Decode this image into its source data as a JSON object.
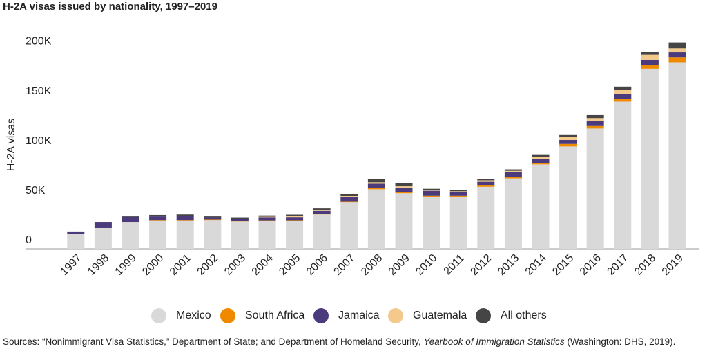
{
  "chart_data": {
    "type": "stacked_bar",
    "title": "H-2A visas issued by nationality, 1997–2019",
    "y_label": "H-2A visas",
    "categories": [
      "1997",
      "1998",
      "1999",
      "2000",
      "2001",
      "2002",
      "2003",
      "2004",
      "2005",
      "2006",
      "2007",
      "2008",
      "2009",
      "2010",
      "2011",
      "2012",
      "2013",
      "2014",
      "2015",
      "2016",
      "2017",
      "2018",
      "2019"
    ],
    "series": [
      {
        "name": "Mexico",
        "color": "#d9d9d9",
        "values": [
          14600,
          21500,
          27000,
          28500,
          28500,
          29000,
          27500,
          28000,
          28000,
          34500,
          47000,
          60000,
          56000,
          52000,
          52000,
          62500,
          71000,
          85000,
          103000,
          121000,
          148000,
          181000,
          187500
        ]
      },
      {
        "name": "South Africa",
        "color": "#ef8a00",
        "values": [
          0,
          0,
          0,
          500,
          500,
          500,
          500,
          700,
          800,
          800,
          500,
          1500,
          1500,
          1500,
          1500,
          1500,
          1500,
          1500,
          2500,
          2500,
          3000,
          4000,
          5000
        ]
      },
      {
        "name": "Jamaica",
        "color": "#4b3b7c",
        "values": [
          2500,
          5500,
          5000,
          3500,
          4000,
          2000,
          2500,
          3000,
          3000,
          3000,
          4500,
          4000,
          4000,
          5000,
          3500,
          3500,
          4500,
          4000,
          4000,
          5000,
          5000,
          5000,
          5000
        ]
      },
      {
        "name": "Guatemala",
        "color": "#f3c98c",
        "values": [
          0,
          0,
          0,
          0,
          0,
          0,
          0,
          500,
          1000,
          1000,
          1000,
          1500,
          1500,
          500,
          1000,
          1500,
          1500,
          2000,
          3000,
          3000,
          4000,
          5000,
          4000
        ]
      },
      {
        "name": "All others",
        "color": "#454545",
        "values": [
          300,
          0,
          1000,
          1500,
          1500,
          1000,
          1000,
          1300,
          1500,
          1500,
          2000,
          3500,
          3000,
          1500,
          1500,
          1500,
          1500,
          2000,
          2000,
          3000,
          3000,
          3000,
          6000
        ]
      }
    ],
    "ylim": [
      0,
      210000
    ],
    "yticks": [
      0,
      {
        "value": 50000,
        "label": "50K"
      },
      {
        "value": 100000,
        "label": "100K"
      },
      {
        "value": 150000,
        "label": "150K"
      },
      {
        "value": 200000,
        "label": "200K"
      }
    ],
    "grid": false,
    "source": [
      "Sources: “Nonimmigrant Visa Statistics,” Department of State; and Department of Homeland Security, ",
      "Yearbook of Immigration Statistics",
      " (Washington: DHS, 2019)."
    ]
  }
}
